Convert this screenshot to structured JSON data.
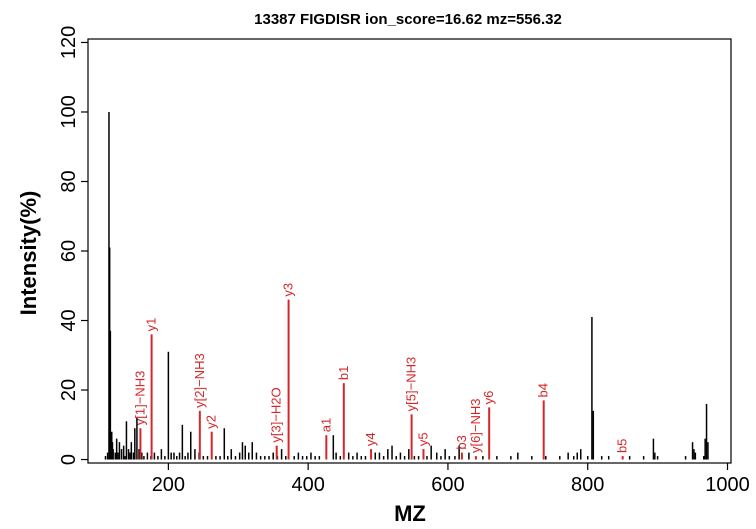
{
  "chart_data": {
    "type": "bar",
    "title": "13387 FIGDISR ion_score=16.62 mz=556.32",
    "xlabel": "MZ",
    "ylabel": "Intensity(%)",
    "xlim": [
      85,
      1005
    ],
    "ylim": [
      -1,
      121
    ],
    "xticks": [
      200,
      400,
      600,
      800,
      1000
    ],
    "yticks": [
      0,
      20,
      40,
      60,
      80,
      100,
      120
    ],
    "grid": false,
    "legend": "none",
    "colors": {
      "unmatched": "#000000",
      "matched": "#d62728"
    },
    "series": [
      {
        "kind": "unmatched",
        "x": [
          110,
          113,
          115,
          116,
          117,
          118,
          119,
          120,
          121,
          124,
          126,
          128,
          130,
          133,
          136,
          138,
          140,
          143,
          145,
          147,
          150,
          152,
          155,
          158,
          162,
          165,
          170,
          175,
          180,
          185,
          190,
          195,
          200,
          204,
          208,
          212,
          216,
          220,
          224,
          228,
          232,
          238,
          244,
          250,
          256,
          262,
          268,
          274,
          280,
          285,
          290,
          296,
          302,
          306,
          310,
          315,
          320,
          326,
          332,
          338,
          344,
          350,
          356,
          362,
          368,
          380,
          386,
          392,
          398,
          404,
          410,
          416,
          436,
          440,
          446,
          458,
          464,
          470,
          476,
          482,
          496,
          502,
          508,
          514,
          520,
          526,
          532,
          538,
          544,
          552,
          558,
          570,
          576,
          584,
          590,
          596,
          602,
          610,
          616,
          630,
          650,
          670,
          690,
          700,
          720,
          740,
          760,
          772,
          780,
          785,
          790,
          800,
          806,
          808,
          820,
          830,
          860,
          880,
          894,
          896,
          900,
          940,
          950,
          952,
          954,
          966,
          968,
          970,
          972
        ],
        "y": [
          1,
          2,
          100,
          61,
          37,
          6,
          8,
          5,
          3,
          2,
          6,
          2,
          5,
          3,
          4,
          1,
          11,
          3,
          2,
          5,
          2,
          9,
          12,
          3,
          2,
          1,
          2,
          1,
          2,
          1,
          3,
          1,
          31,
          2,
          2,
          1,
          2,
          10,
          1,
          2,
          8,
          3,
          2,
          1,
          1,
          2,
          1,
          1,
          9,
          1,
          3,
          1,
          2,
          5,
          4,
          2,
          5,
          2,
          1,
          1,
          1,
          2,
          1,
          3,
          1,
          1,
          2,
          1,
          1,
          2,
          1,
          1,
          7,
          2,
          1,
          2,
          1,
          2,
          1,
          1,
          2,
          2,
          1,
          3,
          4,
          1,
          2,
          1,
          3,
          1,
          1,
          1,
          4,
          2,
          1,
          3,
          1,
          1,
          4,
          2,
          1,
          1,
          1,
          2,
          1,
          1,
          1,
          2,
          1,
          2,
          3,
          1,
          41,
          14,
          1,
          1,
          1,
          1,
          6,
          2,
          1,
          1,
          5,
          3,
          2,
          1,
          6,
          16,
          5
        ]
      },
      {
        "kind": "matched",
        "x": [
          160,
          176,
          245,
          262,
          355,
          372,
          426,
          451,
          490,
          548,
          565,
          620,
          640,
          659,
          737,
          850
        ],
        "y": [
          9,
          36,
          14,
          8,
          4,
          46,
          7,
          22,
          3,
          13,
          3,
          2,
          1,
          15,
          17,
          1
        ],
        "labels": [
          "y[1]−NH3",
          "y1",
          "y[2]−NH3",
          "y2",
          "y[3]−H2O",
          "y3",
          "a1",
          "b1",
          "y4",
          "y[5]−NH3",
          "y5",
          "b3",
          "y[6]−NH3",
          "y6",
          "b4",
          "b5"
        ]
      }
    ]
  }
}
